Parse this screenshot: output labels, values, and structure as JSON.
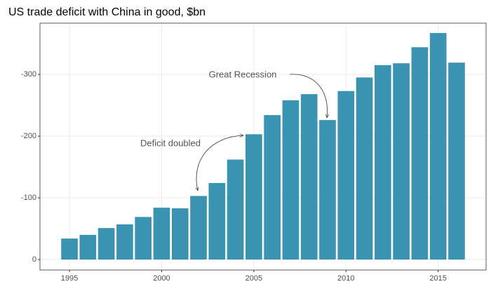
{
  "chart_data": {
    "type": "bar",
    "title": "US trade deficit with China in good, $bn",
    "x": [
      1995,
      1996,
      1997,
      1998,
      1999,
      2000,
      2001,
      2002,
      2003,
      2004,
      2005,
      2006,
      2007,
      2008,
      2009,
      2010,
      2011,
      2012,
      2013,
      2014,
      2015,
      2016
    ],
    "values": [
      -34,
      -40,
      -51,
      -57,
      -69,
      -84,
      -83,
      -103,
      -124,
      -162,
      -203,
      -234,
      -258,
      -268,
      -226,
      -273,
      -295,
      -315,
      -318,
      -344,
      -367,
      -319
    ],
    "color": "#3a93b0",
    "xlim": [
      1993.4,
      2017.6
    ],
    "xticks": [
      1995,
      2000,
      2005,
      2010,
      2015
    ],
    "ylim": [
      17,
      -383
    ],
    "yticks": [
      0,
      -100,
      -200,
      -300
    ],
    "grid": true,
    "annotations": [
      "Deficit doubled",
      "Great Recession"
    ]
  }
}
